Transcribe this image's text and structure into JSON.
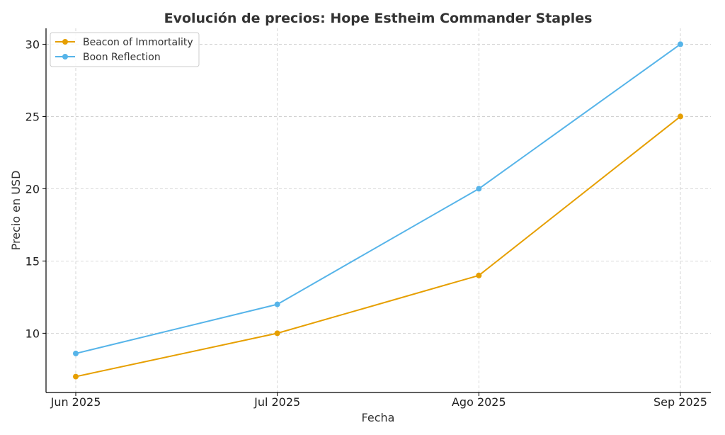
{
  "chart_data": {
    "type": "line",
    "title": "Evolución de precios: Hope Estheim Commander Staples",
    "xlabel": "Fecha",
    "ylabel": "Precio en USD",
    "categories": [
      "Jun 2025",
      "Jul 2025",
      "Ago 2025",
      "Sep 2025"
    ],
    "ylim": [
      5.9,
      31.1
    ],
    "yticks": [
      10,
      15,
      20,
      25,
      30
    ],
    "grid": true,
    "legend_position": "top-left",
    "series": [
      {
        "name": "Beacon of Immortality",
        "color": "#E69F00",
        "values": [
          7,
          10,
          14,
          25
        ]
      },
      {
        "name": "Boon Reflection",
        "color": "#56B4E9",
        "values": [
          8.6,
          12,
          20,
          30
        ]
      }
    ]
  }
}
